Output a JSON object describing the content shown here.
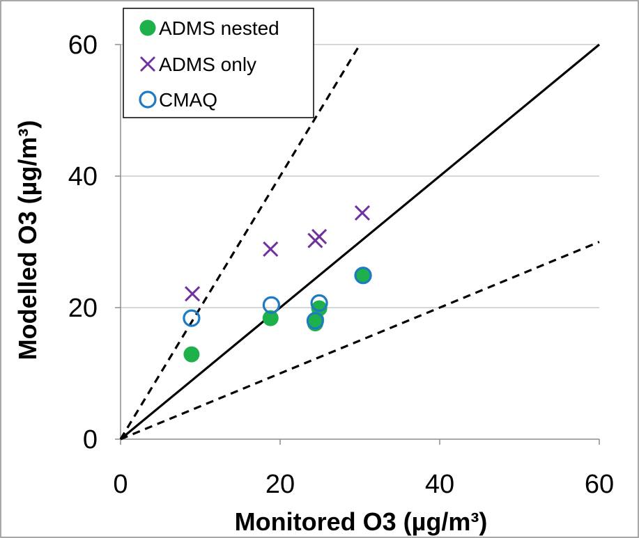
{
  "chart_data": {
    "type": "scatter",
    "xlabel": "Monitored O3 (µg/m³)",
    "ylabel": "Modelled O3 (µg/m³)",
    "xlim": [
      0,
      60
    ],
    "ylim": [
      0,
      60
    ],
    "x_ticks": [
      "0",
      "20",
      "40",
      "60"
    ],
    "y_ticks": [
      "0",
      "20",
      "40",
      "60"
    ],
    "grid": "horizontal",
    "legend_position": "top-left",
    "reference_lines": [
      {
        "label": "1:1",
        "slope": 1,
        "style": "solid"
      },
      {
        "label": "factor of 2 upper",
        "slope": 2,
        "style": "dashed"
      },
      {
        "label": "factor of 2 lower",
        "slope": 0.5,
        "style": "dashed"
      }
    ],
    "series": [
      {
        "name": "ADMS nested",
        "marker": "filled-circle",
        "color": "#1DB04B",
        "points": [
          {
            "x": 8.9,
            "y": 12.9
          },
          {
            "x": 18.8,
            "y": 18.4
          },
          {
            "x": 24.4,
            "y": 17.6
          },
          {
            "x": 24.5,
            "y": 18.2
          },
          {
            "x": 24.9,
            "y": 19.9
          },
          {
            "x": 30.3,
            "y": 24.9
          }
        ]
      },
      {
        "name": "ADMS only",
        "marker": "cross",
        "color": "#7030A0",
        "points": [
          {
            "x": 9.0,
            "y": 22.1
          },
          {
            "x": 18.8,
            "y": 28.9
          },
          {
            "x": 24.4,
            "y": 30.2
          },
          {
            "x": 24.9,
            "y": 30.8
          },
          {
            "x": 30.3,
            "y": 34.4
          }
        ]
      },
      {
        "name": "CMAQ",
        "marker": "open-circle",
        "color": "#1F7AC4",
        "points": [
          {
            "x": 8.9,
            "y": 18.4
          },
          {
            "x": 18.9,
            "y": 20.4
          },
          {
            "x": 24.4,
            "y": 18.0
          },
          {
            "x": 24.9,
            "y": 20.7
          },
          {
            "x": 30.4,
            "y": 24.9
          }
        ]
      }
    ]
  }
}
